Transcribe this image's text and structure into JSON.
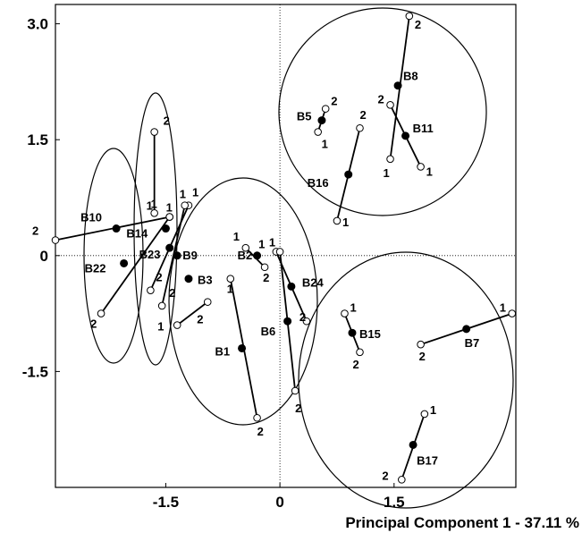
{
  "chart_data": {
    "type": "scatter",
    "xlabel": "Principal Component 1  -  37.11 %",
    "ylabel": "",
    "xlim": [
      -2.95,
      3.1
    ],
    "ylim": [
      -3.0,
      3.25
    ],
    "x_ticks": [
      -1.5,
      0,
      1.5
    ],
    "x_tick_labels": [
      "-1.5",
      "0",
      "1.5"
    ],
    "y_ticks": [
      -1.5,
      0,
      1.5,
      3.0
    ],
    "y_tick_labels": [
      "-1.5",
      "0",
      "1.5",
      "3.0"
    ],
    "zero_lines": "dotted",
    "samples": [
      {
        "name": "B8",
        "mean": [
          1.55,
          2.2
        ],
        "p1": [
          1.45,
          1.25
        ],
        "p2": [
          1.7,
          3.1
        ]
      },
      {
        "name": "B11",
        "mean": [
          1.65,
          1.55
        ],
        "p1": [
          1.85,
          1.15
        ],
        "p2": [
          1.45,
          1.95
        ]
      },
      {
        "name": "B5",
        "mean": [
          0.55,
          1.75
        ],
        "p1": [
          0.5,
          1.6
        ],
        "p2": [
          0.6,
          1.9
        ]
      },
      {
        "name": "B16",
        "mean": [
          0.9,
          1.05
        ],
        "p1": [
          0.75,
          0.45
        ],
        "p2": [
          1.05,
          1.65
        ]
      },
      {
        "name": "B10",
        "mean": [
          -2.15,
          0.35
        ],
        "p1": [
          -1.45,
          0.5
        ],
        "p2": [
          -2.95,
          0.2
        ]
      },
      {
        "name": "B14",
        "mean": [
          -1.5,
          0.35
        ],
        "p1": [
          -1.65,
          0.55
        ],
        "p2": [
          -1.65,
          1.6
        ]
      },
      {
        "name": "B22",
        "mean": [
          -2.05,
          -0.1
        ],
        "p1": [
          -1.45,
          0.5
        ],
        "p2": [
          -2.35,
          -0.75
        ]
      },
      {
        "name": "B23",
        "mean": [
          -1.45,
          0.1
        ],
        "p1": [
          -1.2,
          0.65
        ],
        "p2": [
          -1.7,
          -0.45
        ]
      },
      {
        "name": "B9",
        "mean": [
          -1.35,
          0.0
        ],
        "p1": [
          -1.25,
          0.65
        ],
        "p2": [
          -1.55,
          -0.65
        ]
      },
      {
        "name": "B3",
        "mean": [
          -1.2,
          -0.3
        ],
        "p1": [
          -1.35,
          -0.9
        ],
        "p2": [
          -0.95,
          -0.6
        ]
      },
      {
        "name": "B2",
        "mean": [
          -0.3,
          0.0
        ],
        "p1": [
          -0.45,
          0.1
        ],
        "p2": [
          -0.2,
          -0.15
        ]
      },
      {
        "name": "B24",
        "mean": [
          0.15,
          -0.4
        ],
        "p1": [
          -0.05,
          0.05
        ],
        "p2": [
          0.35,
          -0.85
        ]
      },
      {
        "name": "B6",
        "mean": [
          0.1,
          -0.85
        ],
        "p1": [
          0.0,
          0.05
        ],
        "p2": [
          0.2,
          -1.75
        ]
      },
      {
        "name": "B1",
        "mean": [
          -0.5,
          -1.2
        ],
        "p1": [
          -0.65,
          -0.3
        ],
        "p2": [
          -0.3,
          -2.1
        ]
      },
      {
        "name": "B15",
        "mean": [
          0.95,
          -1.0
        ],
        "p1": [
          0.85,
          -0.75
        ],
        "p2": [
          1.05,
          -1.25
        ]
      },
      {
        "name": "B7",
        "mean": [
          2.45,
          -0.95
        ],
        "p1": [
          3.05,
          -0.75
        ],
        "p2": [
          1.85,
          -1.15
        ]
      },
      {
        "name": "B17",
        "mean": [
          1.75,
          -2.45
        ],
        "p1": [
          1.9,
          -2.05
        ],
        "p2": [
          1.6,
          -2.9
        ]
      }
    ],
    "groups": [
      "upper-right",
      "left-1",
      "left-2",
      "center",
      "lower-right"
    ]
  }
}
